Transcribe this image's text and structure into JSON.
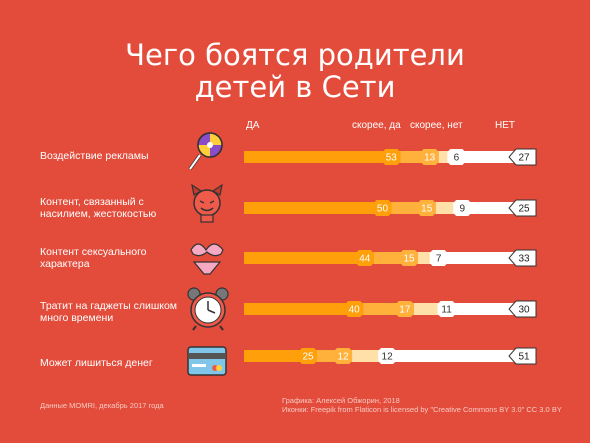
{
  "title_line1": "Чего боятся родители",
  "title_line2": "детей в Сети",
  "footer_left": "Данные MOMRI, декабрь 2017 года",
  "footer_right_1": "Графика: Алексей Обжорин, 2018",
  "footer_right_2": "Иконки: Freepik  from Flaticon  is licensed by \"Creative Commons BY 3.0\" CC 3.0 BY",
  "colors": {
    "background": "#e34b3b",
    "yes": "#ff9f0a",
    "rather_yes": "#ffb13c",
    "rather_no": "#ffe0a8",
    "no": "#ffffff"
  },
  "chart_data": {
    "type": "bar",
    "stacked": true,
    "orientation": "horizontal",
    "headers": [
      "ДА",
      "скорее, да",
      "скорее, нет",
      "НЕТ"
    ],
    "categories": [
      "Воздействие рекламы",
      "Контент, связанный с насилием, жестокостью",
      "Контент сексуального характера",
      "Тратит на гаджеты слишком много времени",
      "Может лишиться денег"
    ],
    "category_lines": [
      [
        "Воздействие рекламы"
      ],
      [
        "Контент, связанный с",
        "насилием, жестокостью"
      ],
      [
        "Контент сексуального",
        "характера"
      ],
      [
        "Тратит на гаджеты слишком",
        "много времени"
      ],
      [
        "Может лишиться денег"
      ]
    ],
    "icons": [
      "lollipop-icon",
      "devil-icon",
      "bra-icon",
      "alarm-clock-icon",
      "credit-card-icon"
    ],
    "series": [
      {
        "name": "ДА",
        "values": [
          53,
          50,
          44,
          40,
          25
        ]
      },
      {
        "name": "скорее, да",
        "values": [
          13,
          15,
          15,
          17,
          12
        ]
      },
      {
        "name": "скорее, нет",
        "values": [
          6,
          9,
          7,
          11,
          12
        ]
      },
      {
        "name": "НЕТ",
        "values": [
          27,
          25,
          33,
          30,
          51
        ]
      }
    ]
  }
}
